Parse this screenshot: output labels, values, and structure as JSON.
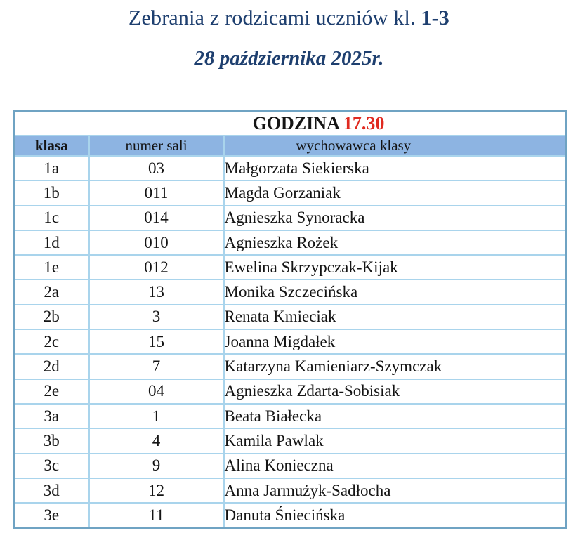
{
  "page": {
    "title_regular": "Zebrania z rodzicami uczniów kl. ",
    "title_bold": "1-3",
    "subtitle": "28 października 2025r."
  },
  "table": {
    "caption_label": "GODZINA",
    "caption_time": "17.30",
    "columns": [
      "klasa",
      "numer sali",
      "wychowawca klasy"
    ],
    "rows": [
      {
        "klasa": "1a",
        "numer_sali": "03",
        "wychowawca": "Małgorzata Siekierska"
      },
      {
        "klasa": "1b",
        "numer_sali": "011",
        "wychowawca": "Magda Gorzaniak"
      },
      {
        "klasa": "1c",
        "numer_sali": "014",
        "wychowawca": "Agnieszka Synoracka"
      },
      {
        "klasa": "1d",
        "numer_sali": "010",
        "wychowawca": "Agnieszka Rożek"
      },
      {
        "klasa": "1e",
        "numer_sali": "012",
        "wychowawca": "Ewelina Skrzypczak-Kijak"
      },
      {
        "klasa": "2a",
        "numer_sali": "13",
        "wychowawca": "Monika Szczecińska"
      },
      {
        "klasa": "2b",
        "numer_sali": "3",
        "wychowawca": "Renata Kmieciak"
      },
      {
        "klasa": "2c",
        "numer_sali": "15",
        "wychowawca": "Joanna Migdałek"
      },
      {
        "klasa": "2d",
        "numer_sali": "7",
        "wychowawca": "Katarzyna Kamieniarz-Szymczak"
      },
      {
        "klasa": "2e",
        "numer_sali": "04",
        "wychowawca": "Agnieszka Zdarta-Sobisiak"
      },
      {
        "klasa": "3a",
        "numer_sali": "1",
        "wychowawca": "Beata Białecka"
      },
      {
        "klasa": "3b",
        "numer_sali": "4",
        "wychowawca": "Kamila Pawlak"
      },
      {
        "klasa": "3c",
        "numer_sali": "9",
        "wychowawca": "Alina Konieczna"
      },
      {
        "klasa": "3d",
        "numer_sali": "12",
        "wychowawca": "Anna Jarmużyk-Sadłocha"
      },
      {
        "klasa": "3e",
        "numer_sali": "11",
        "wychowawca": "Danuta Śniecińska"
      }
    ]
  },
  "colors": {
    "title_blue": "#1e3f6f",
    "time_red": "#e02a20",
    "header_row_bg": "#8db4e2",
    "inner_border": "#a9d4ec",
    "outer_border": "#6fa3c3",
    "text": "#141414"
  }
}
